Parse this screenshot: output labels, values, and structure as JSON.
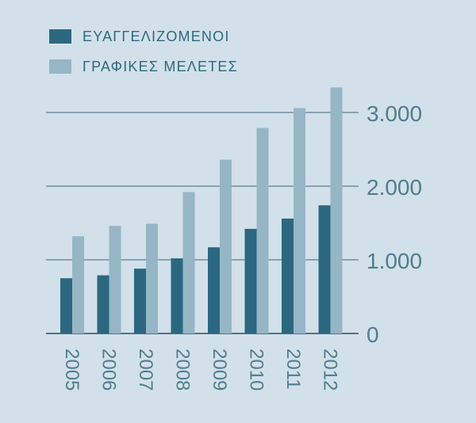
{
  "legend": [
    {
      "label": "ΕΥΑΓΓΕΛΙΖΟΜΕΝΟΙ",
      "color": "#2b6880"
    },
    {
      "label": "ΓΡΑΦΙΚΕΣ ΜΕΛΕΤΕΣ",
      "color": "#96b6c6"
    }
  ],
  "chart_data": {
    "type": "bar",
    "categories": [
      "2005",
      "2006",
      "2007",
      "2008",
      "2009",
      "2010",
      "2011",
      "2012"
    ],
    "series": [
      {
        "name": "ΕΥΑΓΓΕΛΙΖΟΜΕΝΟΙ",
        "color": "#2b6880",
        "values": [
          750,
          790,
          880,
          1020,
          1170,
          1420,
          1560,
          1740
        ]
      },
      {
        "name": "ΓΡΑΦΙΚΕΣ ΜΕΛΕΤΕΣ",
        "color": "#96b6c6",
        "values": [
          1320,
          1460,
          1490,
          1920,
          2360,
          2790,
          3060,
          3340
        ]
      }
    ],
    "yticks": [
      0,
      1000,
      2000,
      3000
    ],
    "ytick_labels": [
      "0",
      "1.000",
      "2.000",
      "3.000"
    ],
    "ylim": [
      0,
      3000
    ],
    "gridlines": true,
    "legend_position": "top-left",
    "y_axis_position": "right"
  }
}
